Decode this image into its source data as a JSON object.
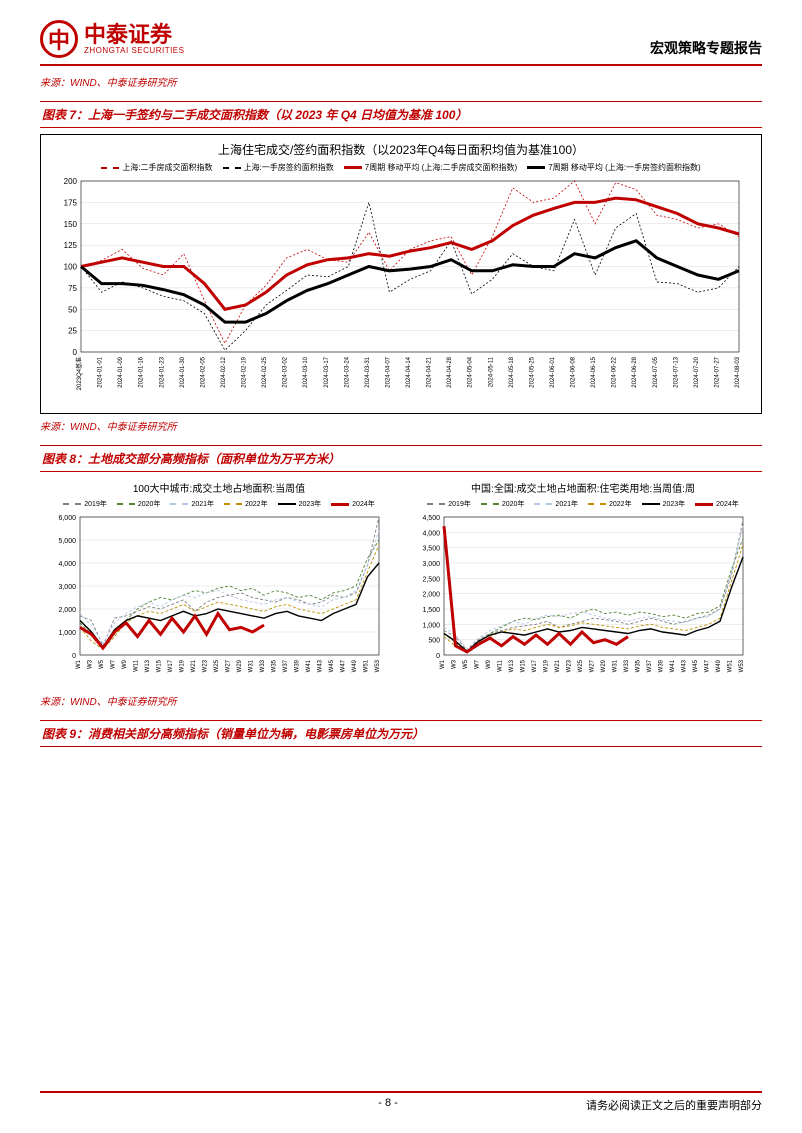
{
  "header": {
    "logo_cn": "中泰证券",
    "logo_en": "ZHONGTAI SECURITIES",
    "logo_mark": "中",
    "report_title": "宏观策略专题报告"
  },
  "source_label": "来源：WIND、中泰证券研究所",
  "fig7": {
    "caption": "图表 7：上海一手签约与二手成交面积指数（以 2023 年 Q4 日均值为基准 100）",
    "chart_title": "上海住宅成交/签约面积指数（以2023年Q4每日面积均值为基准100）",
    "legend": [
      {
        "label": "上海:二手房成交面积指数",
        "color": "#c00000",
        "style": "dashed",
        "thick": false
      },
      {
        "label": "上海:一手房签约面积指数",
        "color": "#000000",
        "style": "dashed",
        "thick": false
      },
      {
        "label": "7周期 移动平均 (上海:二手房成交面积指数)",
        "color": "#c00000",
        "style": "solid",
        "thick": true
      },
      {
        "label": "7周期 移动平均 (上海:一手房签约面积指数)",
        "color": "#000000",
        "style": "solid",
        "thick": true
      }
    ],
    "ylim": [
      0,
      200
    ],
    "ytick_step": 25,
    "x_labels": [
      "2023Q4基准",
      "2024-01-01",
      "2024-01-09",
      "2024-01-16",
      "2024-01-23",
      "2024-01-30",
      "2024-02-05",
      "2024-02-12",
      "2024-02-19",
      "2024-02-25",
      "2024-03-02",
      "2024-03-10",
      "2024-03-17",
      "2024-03-24",
      "2024-03-31",
      "2024-04-07",
      "2024-04-14",
      "2024-04-21",
      "2024-04-28",
      "2024-05-04",
      "2024-05-11",
      "2024-05-18",
      "2024-05-25",
      "2024-06-01",
      "2024-06-08",
      "2024-06-15",
      "2024-06-22",
      "2024-06-28",
      "2024-07-05",
      "2024-07-13",
      "2024-07-20",
      "2024-07-27",
      "2024-08-03"
    ],
    "series": {
      "secondhand_dashed": [
        100,
        107,
        120,
        98,
        90,
        115,
        60,
        10,
        55,
        78,
        110,
        120,
        108,
        105,
        140,
        95,
        120,
        130,
        135,
        90,
        135,
        192,
        175,
        180,
        200,
        150,
        198,
        190,
        160,
        155,
        145,
        150,
        135
      ],
      "firsthand_dashed": [
        100,
        70,
        82,
        75,
        65,
        60,
        45,
        2,
        25,
        55,
        72,
        90,
        88,
        100,
        175,
        70,
        85,
        95,
        130,
        68,
        85,
        115,
        100,
        95,
        155,
        90,
        145,
        162,
        82,
        80,
        70,
        75,
        100
      ],
      "secondhand_ma": [
        100,
        105,
        110,
        105,
        100,
        100,
        80,
        50,
        55,
        70,
        90,
        102,
        108,
        110,
        115,
        112,
        118,
        122,
        128,
        120,
        130,
        148,
        160,
        168,
        175,
        175,
        180,
        178,
        170,
        162,
        150,
        145,
        138
      ],
      "firsthand_ma": [
        100,
        80,
        80,
        78,
        73,
        67,
        55,
        35,
        35,
        45,
        60,
        72,
        80,
        90,
        100,
        95,
        97,
        100,
        108,
        95,
        95,
        102,
        100,
        100,
        115,
        110,
        122,
        130,
        110,
        100,
        90,
        85,
        95
      ]
    },
    "grid_color": "#d9d9d9",
    "background_color": "#ffffff"
  },
  "fig8": {
    "caption": "图表 8：土地成交部分高频指标（面积单位为万平方米）",
    "left": {
      "chart_title": "100大中城市:成交土地占地面积:当周值",
      "ylim": [
        0,
        6000
      ],
      "ytick_step": 1000,
      "legend": [
        {
          "label": "2019年",
          "color": "#7f7f7f",
          "style": "dashed"
        },
        {
          "label": "2020年",
          "color": "#548235",
          "style": "dashed"
        },
        {
          "label": "2021年",
          "color": "#b4c6e7",
          "style": "dashed"
        },
        {
          "label": "2022年",
          "color": "#bf8f00",
          "style": "dashed"
        },
        {
          "label": "2023年",
          "color": "#000000",
          "style": "solid"
        },
        {
          "label": "2024年",
          "color": "#c00000",
          "style": "solid_thick"
        }
      ],
      "x_labels": [
        "W1",
        "W3",
        "W5",
        "W7",
        "W9",
        "W11",
        "W13",
        "W15",
        "W17",
        "W19",
        "W21",
        "W23",
        "W25",
        "W27",
        "W29",
        "W31",
        "W33",
        "W35",
        "W37",
        "W39",
        "W41",
        "W43",
        "W45",
        "W47",
        "W49",
        "W51",
        "W53"
      ],
      "series": {
        "y2019": [
          1700,
          1500,
          400,
          1600,
          1700,
          1900,
          2100,
          2000,
          2200,
          2400,
          1900,
          2300,
          2500,
          2600,
          2700,
          2500,
          2400,
          2300,
          2500,
          2400,
          2200,
          2300,
          2600,
          2500,
          2700,
          3900,
          6000
        ],
        "y2020": [
          1400,
          900,
          300,
          900,
          1500,
          2000,
          2300,
          2500,
          2400,
          2600,
          2800,
          2700,
          2900,
          3000,
          2800,
          2900,
          2600,
          2800,
          2700,
          2500,
          2600,
          2400,
          2700,
          2800,
          3000,
          4200,
          5000
        ],
        "y2021": [
          1800,
          1300,
          500,
          1400,
          1800,
          2100,
          2300,
          2100,
          2400,
          2600,
          2500,
          2700,
          2800,
          2600,
          2400,
          2300,
          2200,
          2400,
          2500,
          2300,
          2200,
          2100,
          2400,
          2500,
          2800,
          3900,
          5400
        ],
        "y2022": [
          1200,
          600,
          250,
          800,
          1400,
          1700,
          1900,
          1800,
          2000,
          2200,
          1900,
          2100,
          2300,
          2200,
          2100,
          2000,
          1900,
          2100,
          2200,
          2000,
          1900,
          1800,
          2000,
          2200,
          2400,
          3600,
          4800
        ],
        "y2023": [
          1500,
          1000,
          350,
          1100,
          1500,
          1700,
          1600,
          1500,
          1700,
          1900,
          1700,
          1800,
          2000,
          1900,
          1800,
          1700,
          1600,
          1800,
          1900,
          1700,
          1600,
          1500,
          1800,
          2000,
          2200,
          3400,
          4000
        ],
        "y2024": [
          1200,
          900,
          300,
          1000,
          1400,
          800,
          1500,
          900,
          1600,
          1000,
          1700,
          900,
          1800,
          1100,
          1200,
          1000,
          1300,
          null,
          null,
          null,
          null,
          null,
          null,
          null,
          null,
          null,
          null
        ]
      }
    },
    "right": {
      "chart_title": "中国:全国:成交土地占地面积:住宅类用地:当周值:周",
      "ylim": [
        0,
        4500
      ],
      "ytick_step": 500,
      "legend": [
        {
          "label": "2019年",
          "color": "#7f7f7f",
          "style": "dashed"
        },
        {
          "label": "2020年",
          "color": "#548235",
          "style": "dashed"
        },
        {
          "label": "2021年",
          "color": "#b4c6e7",
          "style": "dashed"
        },
        {
          "label": "2022年",
          "color": "#bf8f00",
          "style": "dashed"
        },
        {
          "label": "2023年",
          "color": "#000000",
          "style": "solid"
        },
        {
          "label": "2024年",
          "color": "#c00000",
          "style": "solid_thick"
        }
      ],
      "x_labels": [
        "W1",
        "W3",
        "W5",
        "W7",
        "W9",
        "W11",
        "W13",
        "W15",
        "W17",
        "W19",
        "W21",
        "W23",
        "W25",
        "W27",
        "W29",
        "W31",
        "W33",
        "W35",
        "W37",
        "W39",
        "W41",
        "W43",
        "W45",
        "W47",
        "W49",
        "W51",
        "W53"
      ],
      "series": {
        "y2019": [
          800,
          600,
          150,
          500,
          700,
          800,
          900,
          950,
          1000,
          1100,
          900,
          1000,
          1100,
          1200,
          1150,
          1100,
          1000,
          1100,
          1200,
          1100,
          1000,
          1100,
          1200,
          1300,
          1500,
          2600,
          4400
        ],
        "y2020": [
          700,
          400,
          100,
          400,
          700,
          900,
          1100,
          1200,
          1150,
          1250,
          1300,
          1200,
          1400,
          1500,
          1350,
          1400,
          1300,
          1400,
          1350,
          1250,
          1300,
          1200,
          1350,
          1400,
          1600,
          2800,
          3800
        ],
        "y2021": [
          900,
          650,
          200,
          550,
          800,
          950,
          1100,
          1000,
          1200,
          1300,
          1250,
          1350,
          1400,
          1300,
          1200,
          1150,
          1100,
          1200,
          1250,
          1150,
          1100,
          1050,
          1200,
          1250,
          1500,
          2700,
          4200
        ],
        "y2022": [
          600,
          300,
          100,
          350,
          600,
          750,
          850,
          800,
          900,
          1000,
          900,
          950,
          1050,
          1000,
          950,
          900,
          850,
          950,
          1000,
          900,
          850,
          800,
          900,
          1000,
          1200,
          2400,
          3600
        ],
        "y2023": [
          700,
          450,
          120,
          450,
          650,
          750,
          700,
          650,
          750,
          850,
          750,
          800,
          900,
          850,
          800,
          750,
          700,
          800,
          850,
          750,
          700,
          650,
          800,
          900,
          1100,
          2200,
          3200
        ],
        "y2024": [
          4200,
          300,
          100,
          350,
          550,
          300,
          600,
          350,
          650,
          350,
          700,
          350,
          750,
          400,
          500,
          350,
          600,
          null,
          null,
          null,
          null,
          null,
          null,
          null,
          null,
          null,
          null
        ]
      }
    }
  },
  "fig9": {
    "caption": "图表 9：消费相关部分高频指标（销量单位为辆，电影票房单位为万元）"
  },
  "footer": {
    "page": "- 8 -",
    "disclaimer": "请务必阅读正文之后的重要声明部分"
  },
  "colors": {
    "brand_red": "#c00000",
    "grid": "#d9d9d9",
    "axis": "#000000"
  }
}
